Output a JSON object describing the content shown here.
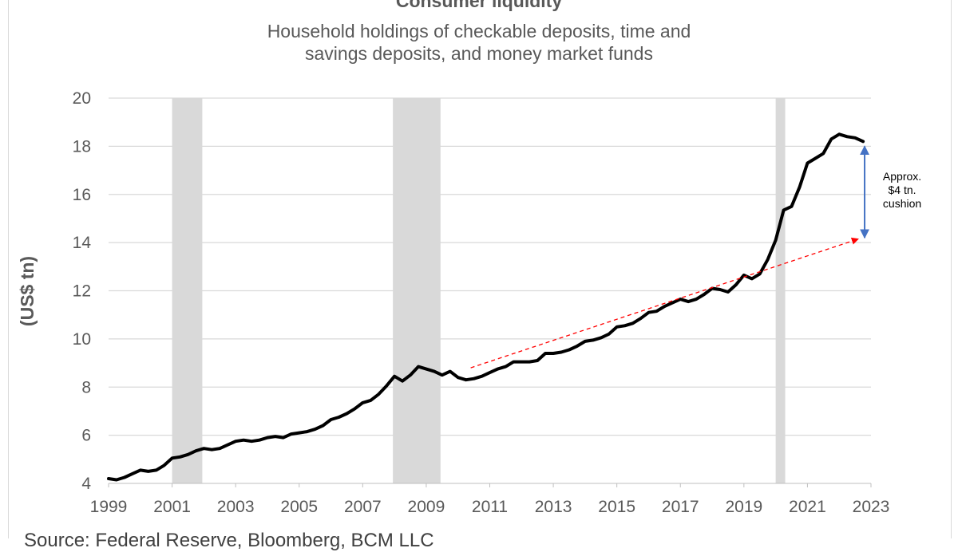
{
  "chart_data": {
    "type": "line",
    "title": "Consumer liquidity",
    "subtitle": "Household holdings of checkable deposits, time and savings deposits, and money market funds",
    "ylabel": "(US$ tn)",
    "xlabel": "",
    "xlim": [
      1999,
      2023
    ],
    "ylim": [
      4,
      20
    ],
    "x_ticks": [
      "1999",
      "2001",
      "2003",
      "2005",
      "2007",
      "2009",
      "2011",
      "2013",
      "2015",
      "2017",
      "2019",
      "2021",
      "2023"
    ],
    "y_ticks": [
      "4",
      "6",
      "8",
      "10",
      "12",
      "14",
      "16",
      "18",
      "20"
    ],
    "grid": "horizontal",
    "recession_shading": [
      [
        2001.0,
        2001.95
      ],
      [
        2007.95,
        2009.45
      ],
      [
        2020.0,
        2020.3
      ]
    ],
    "series": [
      {
        "color": "#000000",
        "x": [
          1999.0,
          1999.25,
          1999.5,
          1999.75,
          2000.0,
          2000.25,
          2000.5,
          2000.75,
          2001.0,
          2001.25,
          2001.5,
          2001.75,
          2002.0,
          2002.25,
          2002.5,
          2002.75,
          2003.0,
          2003.25,
          2003.5,
          2003.75,
          2004.0,
          2004.25,
          2004.5,
          2004.75,
          2005.0,
          2005.25,
          2005.5,
          2005.75,
          2006.0,
          2006.25,
          2006.5,
          2006.75,
          2007.0,
          2007.25,
          2007.5,
          2007.75,
          2008.0,
          2008.25,
          2008.5,
          2008.75,
          2009.0,
          2009.25,
          2009.5,
          2009.75,
          2010.0,
          2010.25,
          2010.5,
          2010.75,
          2011.0,
          2011.25,
          2011.5,
          2011.75,
          2012.0,
          2012.25,
          2012.5,
          2012.75,
          2013.0,
          2013.25,
          2013.5,
          2013.75,
          2014.0,
          2014.25,
          2014.5,
          2014.75,
          2015.0,
          2015.25,
          2015.5,
          2015.75,
          2016.0,
          2016.25,
          2016.5,
          2016.75,
          2017.0,
          2017.25,
          2017.5,
          2017.75,
          2018.0,
          2018.25,
          2018.5,
          2018.75,
          2019.0,
          2019.25,
          2019.5,
          2019.75,
          2020.0,
          2020.25,
          2020.5,
          2020.75,
          2021.0,
          2021.25,
          2021.5,
          2021.75,
          2022.0,
          2022.25,
          2022.5,
          2022.75
        ],
        "values": [
          4.2,
          4.15,
          4.25,
          4.4,
          4.55,
          4.5,
          4.55,
          4.75,
          5.05,
          5.1,
          5.2,
          5.35,
          5.45,
          5.4,
          5.45,
          5.6,
          5.75,
          5.8,
          5.75,
          5.8,
          5.9,
          5.95,
          5.9,
          6.05,
          6.1,
          6.15,
          6.25,
          6.4,
          6.65,
          6.75,
          6.9,
          7.1,
          7.35,
          7.45,
          7.7,
          8.05,
          8.45,
          8.25,
          8.5,
          8.85,
          8.75,
          8.65,
          8.5,
          8.65,
          8.4,
          8.3,
          8.35,
          8.45,
          8.6,
          8.75,
          8.85,
          9.05,
          9.05,
          9.05,
          9.1,
          9.4,
          9.4,
          9.45,
          9.55,
          9.7,
          9.9,
          9.95,
          10.05,
          10.2,
          10.5,
          10.55,
          10.65,
          10.85,
          11.1,
          11.15,
          11.35,
          11.5,
          11.65,
          11.55,
          11.65,
          11.85,
          12.1,
          12.05,
          11.95,
          12.25,
          12.65,
          12.5,
          12.7,
          13.3,
          14.1,
          15.35,
          15.5,
          16.3,
          17.3,
          17.5,
          17.7,
          18.3,
          18.5,
          18.4,
          18.35,
          18.2
        ]
      }
    ],
    "trend_line": {
      "color": "#ff0000",
      "from": [
        2010.4,
        8.8
      ],
      "to": [
        2022.6,
        14.15
      ]
    },
    "cushion_arrow": {
      "color": "#4472c4",
      "x": 2022.8,
      "from": 14.2,
      "to": 18.0
    },
    "annotation": [
      "Approx.",
      "$4 tn.",
      "cushion"
    ]
  },
  "source": "Source: Federal Reserve, Bloomberg, BCM LLC"
}
